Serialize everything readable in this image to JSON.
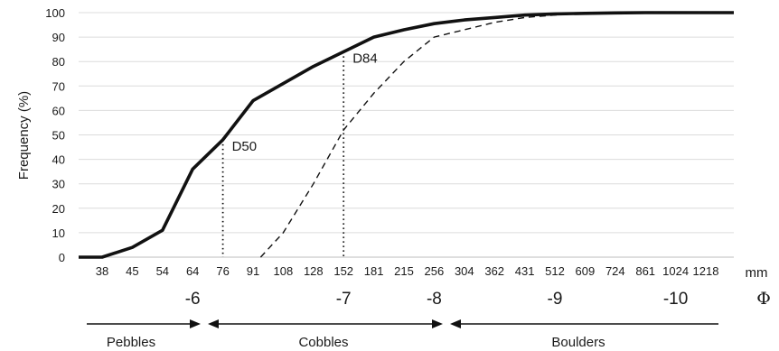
{
  "chart_data": {
    "type": "line",
    "title": "",
    "ylabel": "Frequency (%)",
    "ylim": [
      0,
      100
    ],
    "yticks": [
      0,
      10,
      20,
      30,
      40,
      50,
      60,
      70,
      80,
      90,
      100
    ],
    "x_unit_label": "mm",
    "categories": [
      "38",
      "45",
      "54",
      "64",
      "76",
      "91",
      "108",
      "128",
      "152",
      "181",
      "215",
      "256",
      "304",
      "362",
      "431",
      "512",
      "609",
      "724",
      "861",
      "1024",
      "1218"
    ],
    "series": [
      {
        "style": "solid-thick",
        "values": [
          0,
          4,
          11,
          36,
          48,
          64,
          71,
          78,
          84,
          90,
          93,
          95.5,
          97,
          98,
          99,
          99.5,
          99.7,
          99.9,
          100,
          100,
          100
        ],
        "leading_value": 0,
        "trailing_value": 100
      },
      {
        "style": "dashed",
        "values": [
          null,
          null,
          null,
          null,
          null,
          0,
          10,
          30,
          52,
          67,
          80,
          90,
          93,
          96,
          98,
          99,
          99.7,
          100,
          100,
          100,
          100
        ],
        "start_offset": 0.25,
        "trailing_value": 100
      }
    ],
    "annotations": [
      {
        "label": "D50",
        "category": "76",
        "value": 48
      },
      {
        "label": "D84",
        "category": "152",
        "value": 84
      }
    ],
    "phi_axis": {
      "symbol": "Φ",
      "labels": [
        {
          "text": "-6",
          "at": "64"
        },
        {
          "text": "-7",
          "at": "152"
        },
        {
          "text": "-8",
          "at": "256"
        },
        {
          "text": "-9",
          "at": "512"
        },
        {
          "text": "-10",
          "at": "1024"
        }
      ]
    },
    "size_classes": [
      {
        "name": "Pebbles"
      },
      {
        "name": "Cobbles"
      },
      {
        "name": "Boulders"
      }
    ]
  }
}
